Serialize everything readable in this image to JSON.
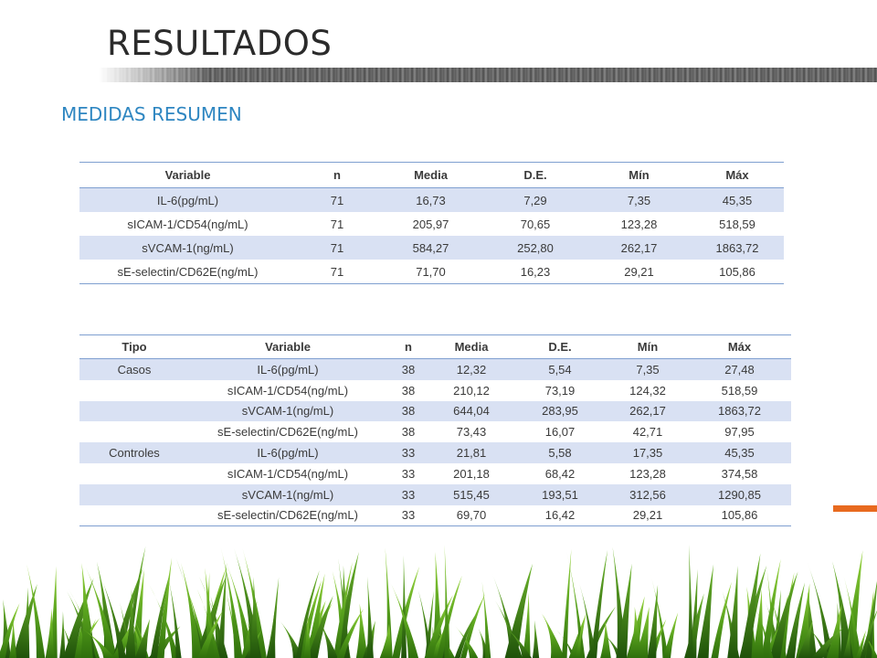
{
  "slide": {
    "title": "RESULTADOS",
    "subtitle": "MEDIDAS RESUMEN"
  },
  "table1": {
    "headers": [
      "Variable",
      "n",
      "Media",
      "D.E.",
      "Mín",
      "Máx"
    ],
    "rows": [
      [
        "IL-6(pg/mL)",
        "71",
        "16,73",
        "7,29",
        "7,35",
        "45,35"
      ],
      [
        "sICAM-1/CD54(ng/mL)",
        "71",
        "205,97",
        "70,65",
        "123,28",
        "518,59"
      ],
      [
        "sVCAM-1(ng/mL)",
        "71",
        "584,27",
        "252,80",
        "262,17",
        "1863,72"
      ],
      [
        "sE-selectin/CD62E(ng/mL)",
        "71",
        "71,70",
        "16,23",
        "29,21",
        "105,86"
      ]
    ]
  },
  "table2": {
    "headers": [
      "Tipo",
      "Variable",
      "n",
      "Media",
      "D.E.",
      "Mín",
      "Máx"
    ],
    "rows": [
      [
        "Casos",
        "IL-6(pg/mL)",
        "38",
        "12,32",
        "5,54",
        "7,35",
        "27,48"
      ],
      [
        "",
        "sICAM-1/CD54(ng/mL)",
        "38",
        "210,12",
        "73,19",
        "124,32",
        "518,59"
      ],
      [
        "",
        "sVCAM-1(ng/mL)",
        "38",
        "644,04",
        "283,95",
        "262,17",
        "1863,72"
      ],
      [
        "",
        "sE-selectin/CD62E(ng/mL)",
        "38",
        "73,43",
        "16,07",
        "42,71",
        "97,95"
      ],
      [
        "Controles",
        "IL-6(pg/mL)",
        "33",
        "21,81",
        "5,58",
        "17,35",
        "45,35"
      ],
      [
        "",
        "sICAM-1/CD54(ng/mL)",
        "33",
        "201,18",
        "68,42",
        "123,28",
        "374,58"
      ],
      [
        "",
        "sVCAM-1(ng/mL)",
        "33",
        "515,45",
        "193,51",
        "312,56",
        "1290,85"
      ],
      [
        "",
        "sE-selectin/CD62E(ng/mL)",
        "33",
        "69,70",
        "16,42",
        "29,21",
        "105,86"
      ]
    ]
  },
  "colors": {
    "title": "#2b2b2b",
    "subtitle": "#2e86c1",
    "row_shade": "#d9e1f3",
    "rule": "#7f9fd0",
    "accent": "#e86a1f",
    "grass_dark": "#3f8a12",
    "grass_light": "#8fd13a"
  },
  "decor": {
    "footer": "grass-illustration",
    "band": "textured-gray-band"
  }
}
